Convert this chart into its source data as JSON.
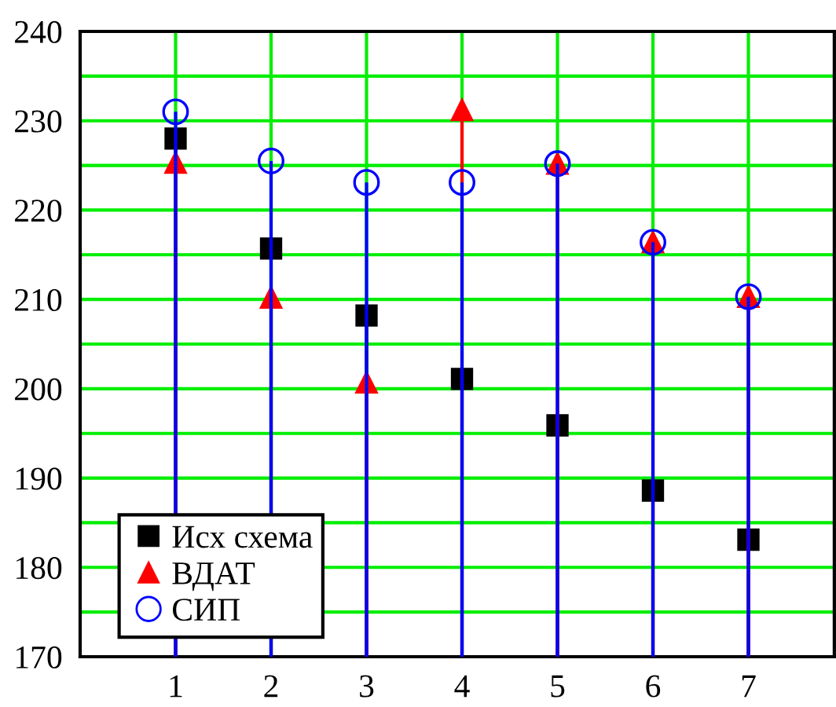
{
  "chart_data": {
    "type": "lollipop",
    "x": [
      1,
      2,
      3,
      4,
      5,
      6,
      7
    ],
    "series": [
      {
        "name": "Исх схема",
        "color": "#000000",
        "marker": "square",
        "values": [
          228,
          215.7,
          208.2,
          201.1,
          195.9,
          188.6,
          183.1
        ]
      },
      {
        "name": "ВДАТ",
        "color": "#ff0000",
        "marker": "triangle",
        "values": [
          225.3,
          210.2,
          200.7,
          231.2,
          225.2,
          216.4,
          210.3
        ]
      },
      {
        "name": "СИП",
        "color": "#0000ff",
        "marker": "circle",
        "values": [
          231,
          225.5,
          223.1,
          223.1,
          225.2,
          216.4,
          210.3
        ]
      }
    ],
    "xlim": [
      0,
      7.9
    ],
    "xticks": [
      1,
      2,
      3,
      4,
      5,
      6,
      7
    ],
    "ylim": [
      170,
      240
    ],
    "yticks": [
      170,
      {
        "value": 175,
        "label": null
      },
      180,
      {
        "value": 185,
        "label": null
      },
      190,
      {
        "value": 195,
        "label": null
      },
      200,
      {
        "value": 205,
        "label": null
      },
      210,
      {
        "value": 215,
        "label": null
      },
      220,
      {
        "value": 225,
        "label": null
      },
      230,
      {
        "value": 235,
        "label": null
      },
      240
    ],
    "grid": true,
    "legend": "bottom left"
  }
}
